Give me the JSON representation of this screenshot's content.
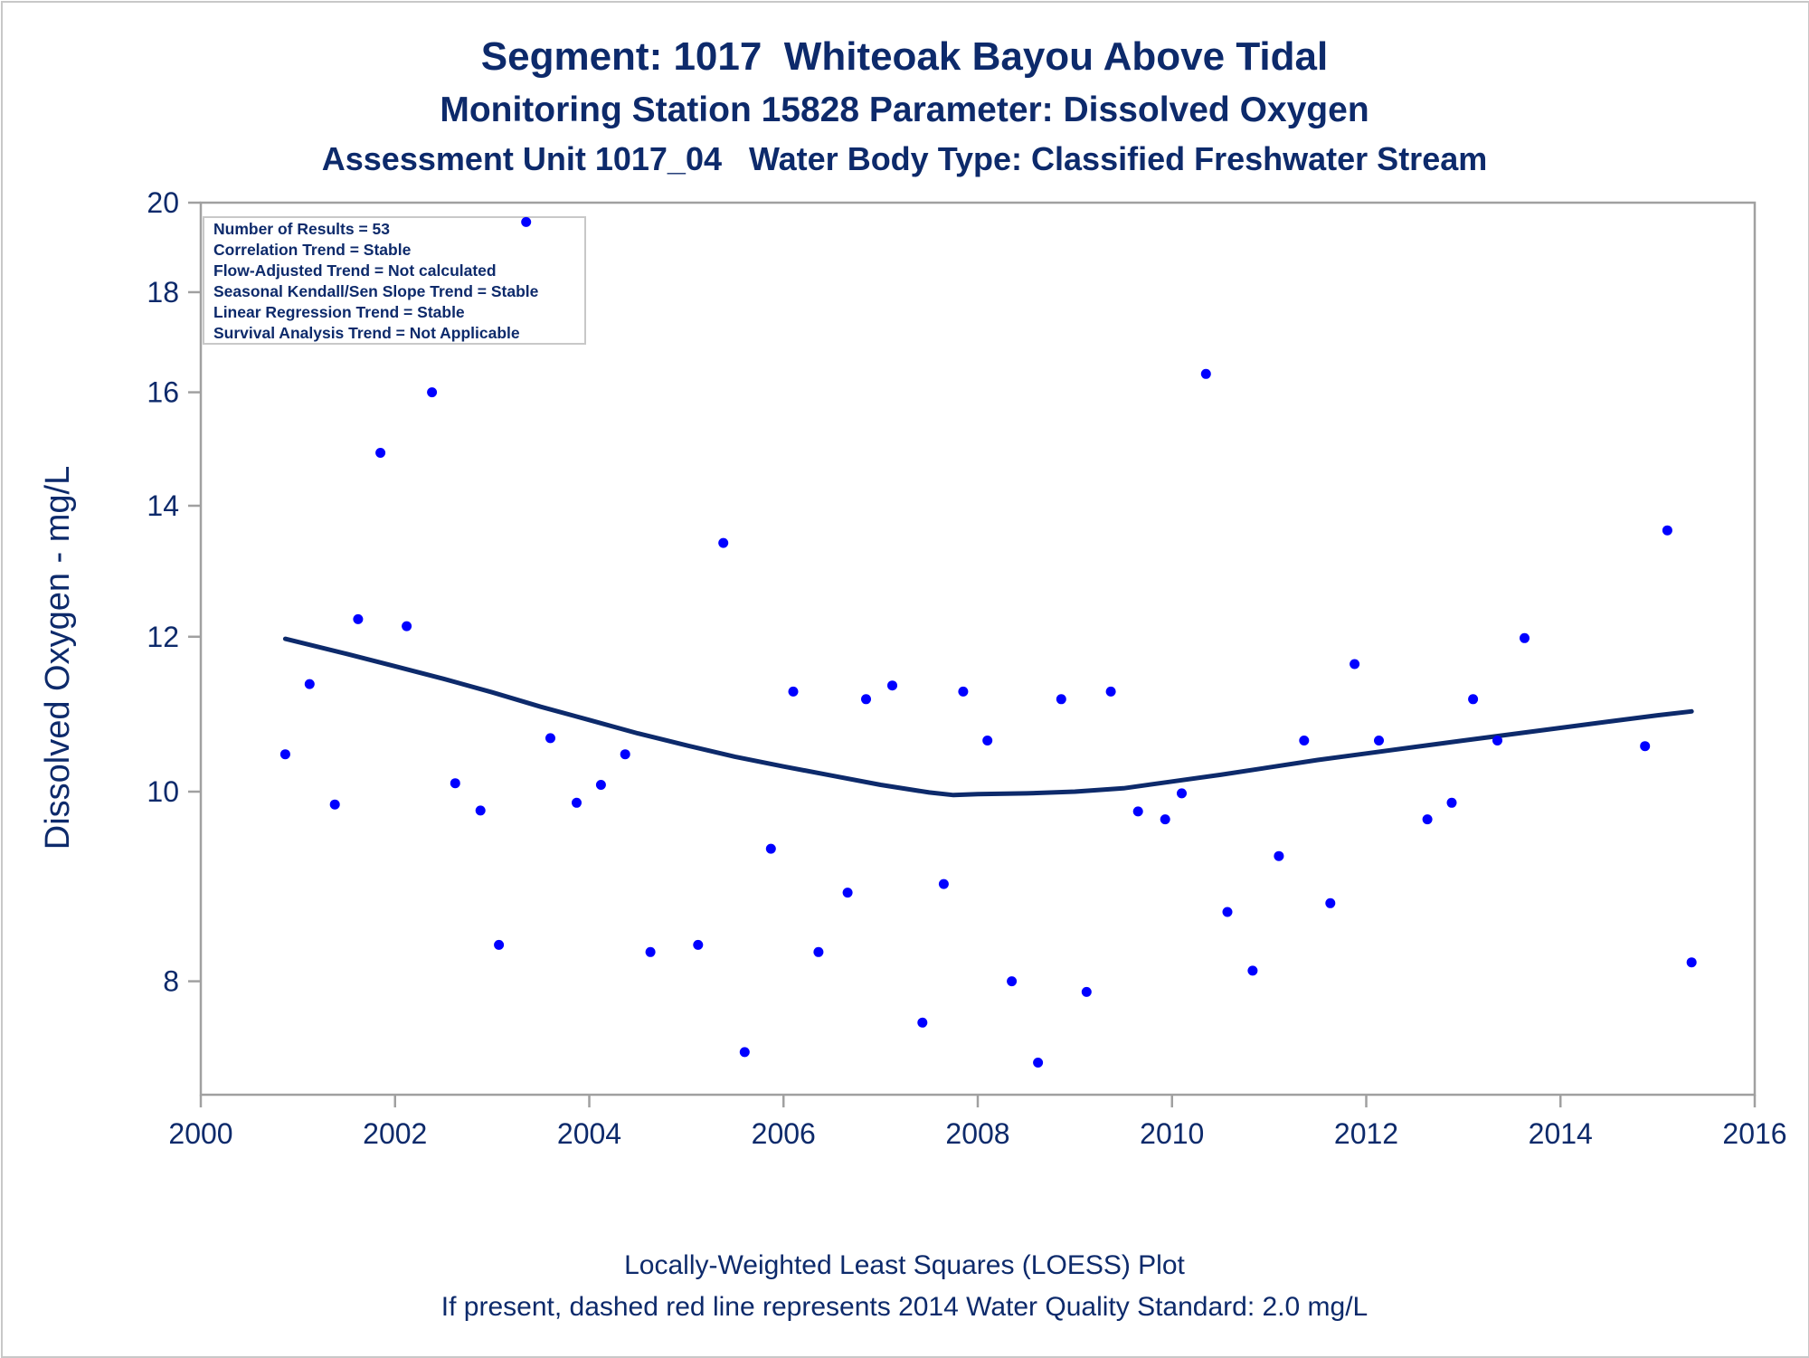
{
  "titles": {
    "line1": "Segment: 1017  Whiteoak Bayou Above Tidal",
    "line2": "Monitoring Station 15828 Parameter: Dissolved Oxygen",
    "line3": "Assessment Unit 1017_04   Water Body Type: Classified Freshwater Stream"
  },
  "footer": {
    "line1": "Locally-Weighted Least Squares (LOESS) Plot",
    "line2": "If present, dashed red line represents 2014 Water Quality Standard: 2.0 mg/L"
  },
  "stats_box": [
    "Number of Results = 53",
    "Correlation Trend = Stable",
    "Flow-Adjusted Trend = Not calculated",
    "Seasonal Kendall/Sen Slope Trend = Stable",
    "Linear Regression Trend = Stable",
    "Survival Analysis Trend = Not Applicable"
  ],
  "colors": {
    "text": "#0d2a6b",
    "points": "#0000ff",
    "loess": "#0d2a6b",
    "frame": "#a0a0a0"
  },
  "chart_data": {
    "type": "scatter",
    "xlabel": "",
    "ylabel": "Dissolved Oxygen - mg/L",
    "xlim": [
      2000,
      2016
    ],
    "ylim": [
      7.0,
      20.0
    ],
    "yscale": "log",
    "xticks": [
      2000,
      2002,
      2004,
      2006,
      2008,
      2010,
      2012,
      2014,
      2016
    ],
    "yticks": [
      8,
      10,
      12,
      14,
      16,
      18,
      20
    ],
    "grid": false,
    "series": [
      {
        "kind": "scatter",
        "points": [
          [
            2000.87,
            10.45
          ],
          [
            2001.12,
            11.35
          ],
          [
            2001.38,
            9.85
          ],
          [
            2001.62,
            12.25
          ],
          [
            2001.85,
            14.9
          ],
          [
            2002.12,
            12.15
          ],
          [
            2002.38,
            16.0
          ],
          [
            2002.62,
            10.1
          ],
          [
            2002.88,
            9.78
          ],
          [
            2003.07,
            8.35
          ],
          [
            2003.35,
            19.55
          ],
          [
            2003.6,
            10.65
          ],
          [
            2003.87,
            9.87
          ],
          [
            2004.12,
            10.08
          ],
          [
            2004.37,
            10.45
          ],
          [
            2004.63,
            8.28
          ],
          [
            2005.12,
            8.35
          ],
          [
            2005.38,
            13.4
          ],
          [
            2005.6,
            7.36
          ],
          [
            2005.87,
            9.35
          ],
          [
            2006.1,
            11.25
          ],
          [
            2006.36,
            8.28
          ],
          [
            2006.66,
            8.88
          ],
          [
            2006.85,
            11.15
          ],
          [
            2007.12,
            11.33
          ],
          [
            2007.43,
            7.62
          ],
          [
            2007.65,
            8.97
          ],
          [
            2007.85,
            11.25
          ],
          [
            2008.1,
            10.62
          ],
          [
            2008.35,
            8.0
          ],
          [
            2008.62,
            7.27
          ],
          [
            2008.86,
            11.15
          ],
          [
            2009.12,
            7.9
          ],
          [
            2009.37,
            11.25
          ],
          [
            2009.65,
            9.77
          ],
          [
            2009.93,
            9.68
          ],
          [
            2010.1,
            9.98
          ],
          [
            2010.35,
            16.35
          ],
          [
            2010.57,
            8.68
          ],
          [
            2010.83,
            8.1
          ],
          [
            2011.1,
            9.27
          ],
          [
            2011.36,
            10.62
          ],
          [
            2011.63,
            8.77
          ],
          [
            2011.88,
            11.62
          ],
          [
            2012.13,
            10.62
          ],
          [
            2012.63,
            9.68
          ],
          [
            2012.88,
            9.87
          ],
          [
            2013.1,
            11.15
          ],
          [
            2013.35,
            10.62
          ],
          [
            2013.63,
            11.98
          ],
          [
            2014.87,
            10.55
          ],
          [
            2015.1,
            13.6
          ],
          [
            2015.35,
            8.18
          ]
        ]
      },
      {
        "kind": "line",
        "name": "",
        "points": [
          [
            2000.87,
            11.97
          ],
          [
            2001.5,
            11.76
          ],
          [
            2002.0,
            11.59
          ],
          [
            2002.5,
            11.42
          ],
          [
            2003.0,
            11.24
          ],
          [
            2003.5,
            11.05
          ],
          [
            2004.0,
            10.88
          ],
          [
            2004.5,
            10.71
          ],
          [
            2005.0,
            10.56
          ],
          [
            2005.5,
            10.42
          ],
          [
            2006.0,
            10.3
          ],
          [
            2006.5,
            10.19
          ],
          [
            2007.0,
            10.08
          ],
          [
            2007.5,
            9.99
          ],
          [
            2007.75,
            9.96
          ],
          [
            2008.0,
            9.97
          ],
          [
            2008.5,
            9.98
          ],
          [
            2009.0,
            10.0
          ],
          [
            2009.5,
            10.04
          ],
          [
            2010.0,
            10.12
          ],
          [
            2010.5,
            10.2
          ],
          [
            2011.0,
            10.29
          ],
          [
            2011.5,
            10.38
          ],
          [
            2012.0,
            10.46
          ],
          [
            2012.5,
            10.54
          ],
          [
            2013.0,
            10.62
          ],
          [
            2013.5,
            10.7
          ],
          [
            2014.0,
            10.78
          ],
          [
            2014.5,
            10.86
          ],
          [
            2015.0,
            10.94
          ],
          [
            2015.35,
            10.99
          ]
        ]
      }
    ]
  }
}
